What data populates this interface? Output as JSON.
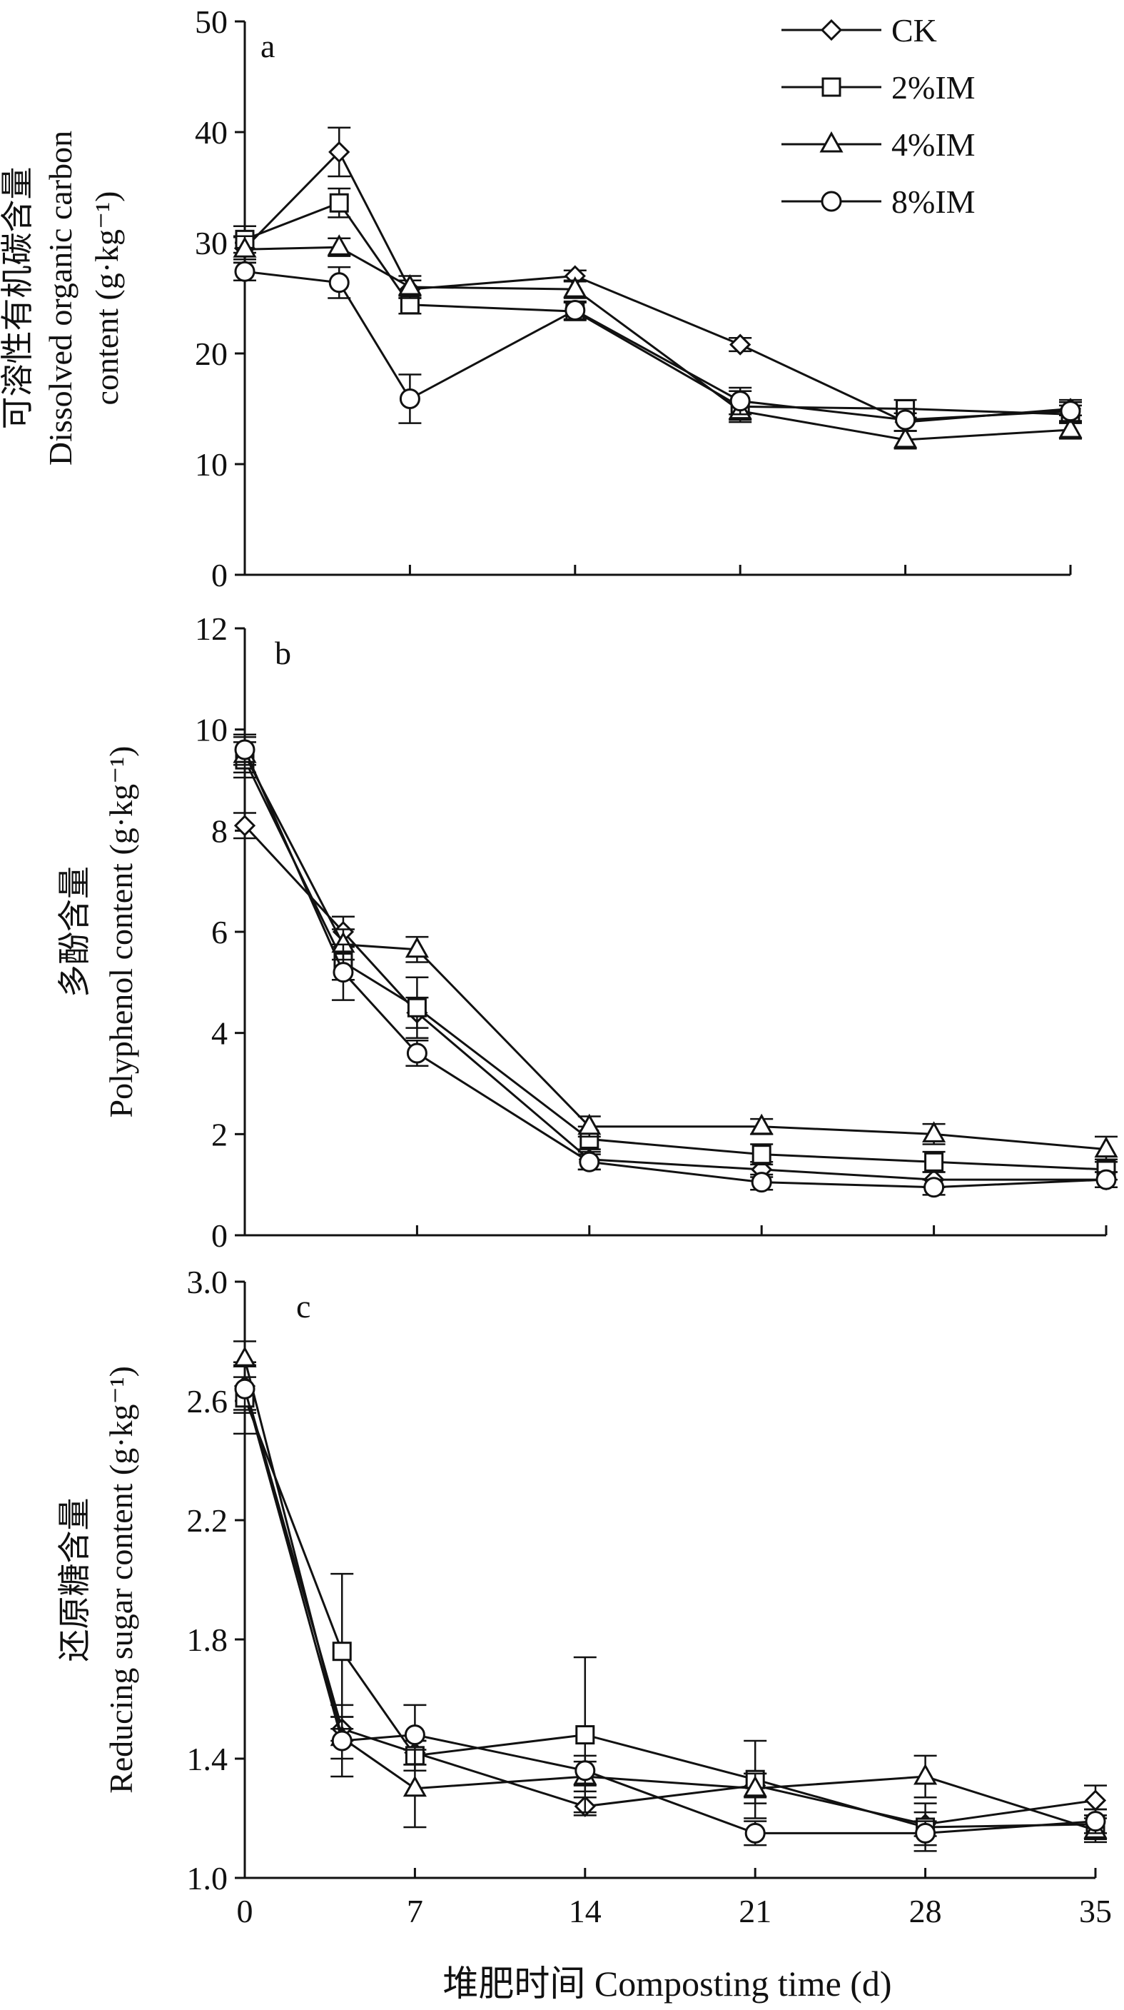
{
  "legend": [
    "CK",
    "2%IM",
    "4%IM",
    "8%IM"
  ],
  "xlabel": "堆肥时间 Composting time (d)",
  "chart_data": [
    {
      "type": "line",
      "panel": "a",
      "ylabel_lines": [
        "可溶性有机碳含量",
        "Dissolved organic carbon",
        "content (g·kg⁻¹)"
      ],
      "x": [
        0,
        4,
        7,
        14,
        21,
        28,
        35
      ],
      "xticks": [
        0,
        7,
        14,
        21,
        28,
        35
      ],
      "yticks": [
        0,
        10,
        20,
        30,
        40,
        50
      ],
      "ylim": [
        0,
        50
      ],
      "xlim": [
        0,
        35
      ],
      "series": [
        {
          "name": "CK",
          "values": [
            29.5,
            38.2,
            25.8,
            27.0,
            20.8,
            13.8,
            15.0
          ],
          "err": [
            1.0,
            2.2,
            0.8,
            0.5,
            0.6,
            0.8,
            0.6
          ]
        },
        {
          "name": "2%IM",
          "values": [
            30.3,
            33.6,
            24.4,
            23.8,
            15.2,
            15.0,
            14.5
          ],
          "err": [
            1.2,
            1.3,
            0.8,
            0.8,
            1.4,
            0.8,
            0.8
          ]
        },
        {
          "name": "4%IM",
          "values": [
            29.4,
            29.6,
            26.0,
            25.8,
            14.8,
            12.2,
            13.1
          ],
          "err": [
            1.2,
            0.8,
            1.0,
            0.8,
            0.8,
            0.8,
            0.8
          ]
        },
        {
          "name": "8%IM",
          "values": [
            27.4,
            26.4,
            15.9,
            23.9,
            15.7,
            14.0,
            14.8
          ],
          "err": [
            0.8,
            1.4,
            2.2,
            0.8,
            1.2,
            1.0,
            1.0
          ]
        }
      ]
    },
    {
      "type": "line",
      "panel": "b",
      "ylabel_lines": [
        "多酚含量",
        "Polyphenol content (g·kg⁻¹)"
      ],
      "x": [
        0,
        4,
        7,
        14,
        21,
        28,
        35
      ],
      "xticks": [
        0,
        7,
        14,
        21,
        28,
        35
      ],
      "yticks": [
        0,
        2,
        4,
        6,
        8,
        10,
        12
      ],
      "ylim": [
        0,
        12
      ],
      "xlim": [
        0,
        35
      ],
      "series": [
        {
          "name": "CK",
          "values": [
            8.1,
            6.0,
            4.4,
            1.5,
            1.3,
            1.1,
            1.1
          ],
          "err": [
            0.25,
            0.3,
            0.3,
            0.2,
            0.15,
            0.15,
            0.15
          ]
        },
        {
          "name": "2%IM",
          "values": [
            9.4,
            5.4,
            4.5,
            1.9,
            1.6,
            1.45,
            1.3
          ],
          "err": [
            0.35,
            0.35,
            0.6,
            0.25,
            0.2,
            0.2,
            0.2
          ]
        },
        {
          "name": "4%IM",
          "values": [
            9.5,
            5.75,
            5.65,
            2.15,
            2.15,
            2.0,
            1.7
          ],
          "err": [
            0.35,
            0.3,
            0.25,
            0.2,
            0.15,
            0.2,
            0.25
          ]
        },
        {
          "name": "8%IM",
          "values": [
            9.6,
            5.2,
            3.6,
            1.45,
            1.05,
            0.95,
            1.1
          ],
          "err": [
            0.3,
            0.55,
            0.25,
            0.15,
            0.15,
            0.15,
            0.15
          ]
        }
      ]
    },
    {
      "type": "line",
      "panel": "c",
      "ylabel_lines": [
        "还原糖含量",
        "Reducing sugar content (g·kg⁻¹)"
      ],
      "x": [
        0,
        4,
        7,
        14,
        21,
        28,
        35
      ],
      "xticks": [
        0,
        7,
        14,
        21,
        28,
        35
      ],
      "yticks": [
        1.0,
        1.4,
        1.8,
        2.2,
        2.6,
        3.0
      ],
      "ytick_labels": [
        "1.0",
        "1.4",
        "1.8",
        "2.2",
        "2.6",
        "3.0"
      ],
      "ylim": [
        1.0,
        3.0
      ],
      "xlim": [
        0,
        35
      ],
      "series": [
        {
          "name": "CK",
          "values": [
            2.65,
            1.5,
            1.42,
            1.24,
            1.31,
            1.18,
            1.26
          ],
          "err": [
            0.08,
            0.04,
            0.04,
            0.03,
            0.04,
            0.04,
            0.05
          ]
        },
        {
          "name": "2%IM",
          "values": [
            2.61,
            1.76,
            1.41,
            1.48,
            1.33,
            1.17,
            1.18
          ],
          "err": [
            0.12,
            0.26,
            0.05,
            0.26,
            0.13,
            0.08,
            0.05
          ]
        },
        {
          "name": "4%IM",
          "values": [
            2.74,
            1.47,
            1.3,
            1.34,
            1.3,
            1.34,
            1.16
          ],
          "err": [
            0.06,
            0.07,
            0.13,
            0.05,
            0.05,
            0.07,
            0.04
          ]
        },
        {
          "name": "8%IM",
          "values": [
            2.64,
            1.46,
            1.48,
            1.36,
            1.15,
            1.15,
            1.19
          ],
          "err": [
            0.08,
            0.12,
            0.1,
            0.05,
            0.04,
            0.04,
            0.04
          ]
        }
      ]
    }
  ]
}
